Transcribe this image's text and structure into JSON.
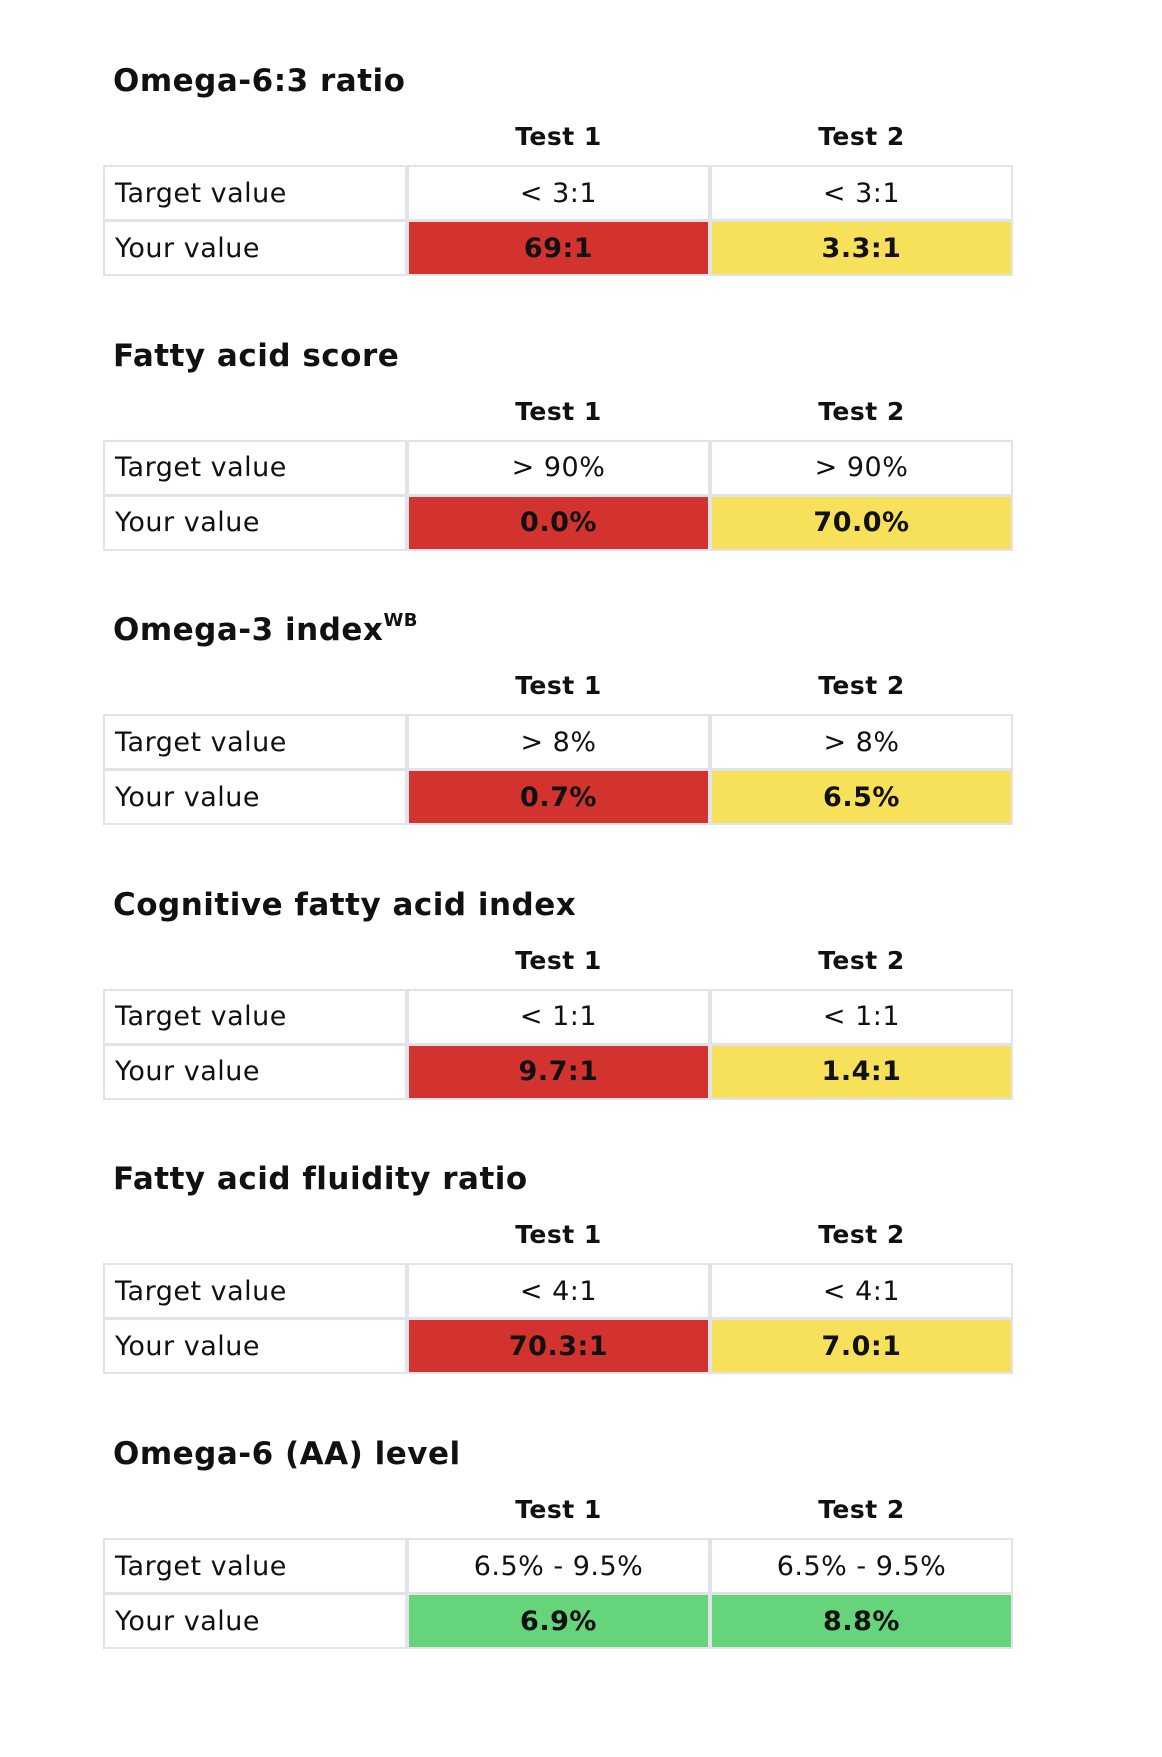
{
  "sections": [
    {
      "title": "Omega-6:3 ratio",
      "columns": [
        "Test 1",
        "Test 2"
      ],
      "rows": [
        {
          "label": "Target value",
          "values": [
            "< 3:1",
            "< 3:1"
          ]
        },
        {
          "label": "Your value",
          "values": [
            "69:1",
            "3.3:1"
          ],
          "colors": [
            "#d2332f",
            "#f7e15b"
          ]
        }
      ]
    },
    {
      "title": "Fatty acid score",
      "columns": [
        "Test 1",
        "Test 2"
      ],
      "rows": [
        {
          "label": "Target value",
          "values": [
            "> 90%",
            "> 90%"
          ]
        },
        {
          "label": "Your value",
          "values": [
            "0.0%",
            "70.0%"
          ],
          "colors": [
            "#d2332f",
            "#f7e15b"
          ]
        }
      ]
    },
    {
      "title": "Omega-3 index",
      "title_sup": "WB",
      "columns": [
        "Test 1",
        "Test 2"
      ],
      "rows": [
        {
          "label": "Target value",
          "values": [
            "> 8%",
            "> 8%"
          ]
        },
        {
          "label": "Your value",
          "values": [
            "0.7%",
            "6.5%"
          ],
          "colors": [
            "#d2332f",
            "#f7e15b"
          ]
        }
      ]
    },
    {
      "title": "Cognitive fatty acid index",
      "columns": [
        "Test 1",
        "Test 2"
      ],
      "rows": [
        {
          "label": "Target value",
          "values": [
            "< 1:1",
            "< 1:1"
          ]
        },
        {
          "label": "Your value",
          "values": [
            "9.7:1",
            "1.4:1"
          ],
          "colors": [
            "#d2332f",
            "#f7e15b"
          ]
        }
      ]
    },
    {
      "title": "Fatty acid fluidity ratio",
      "columns": [
        "Test 1",
        "Test 2"
      ],
      "rows": [
        {
          "label": "Target value",
          "values": [
            "< 4:1",
            "< 4:1"
          ]
        },
        {
          "label": "Your value",
          "values": [
            "70.3:1",
            "7.0:1"
          ],
          "colors": [
            "#d2332f",
            "#f7e15b"
          ]
        }
      ]
    },
    {
      "title": "Omega-6 (AA) level",
      "columns": [
        "Test 1",
        "Test 2"
      ],
      "rows": [
        {
          "label": "Target value",
          "values": [
            "6.5% - 9.5%",
            "6.5% - 9.5%"
          ]
        },
        {
          "label": "Your value",
          "values": [
            "6.9%",
            "8.8%"
          ],
          "colors": [
            "#66d47a",
            "#66d47a"
          ]
        }
      ]
    }
  ]
}
